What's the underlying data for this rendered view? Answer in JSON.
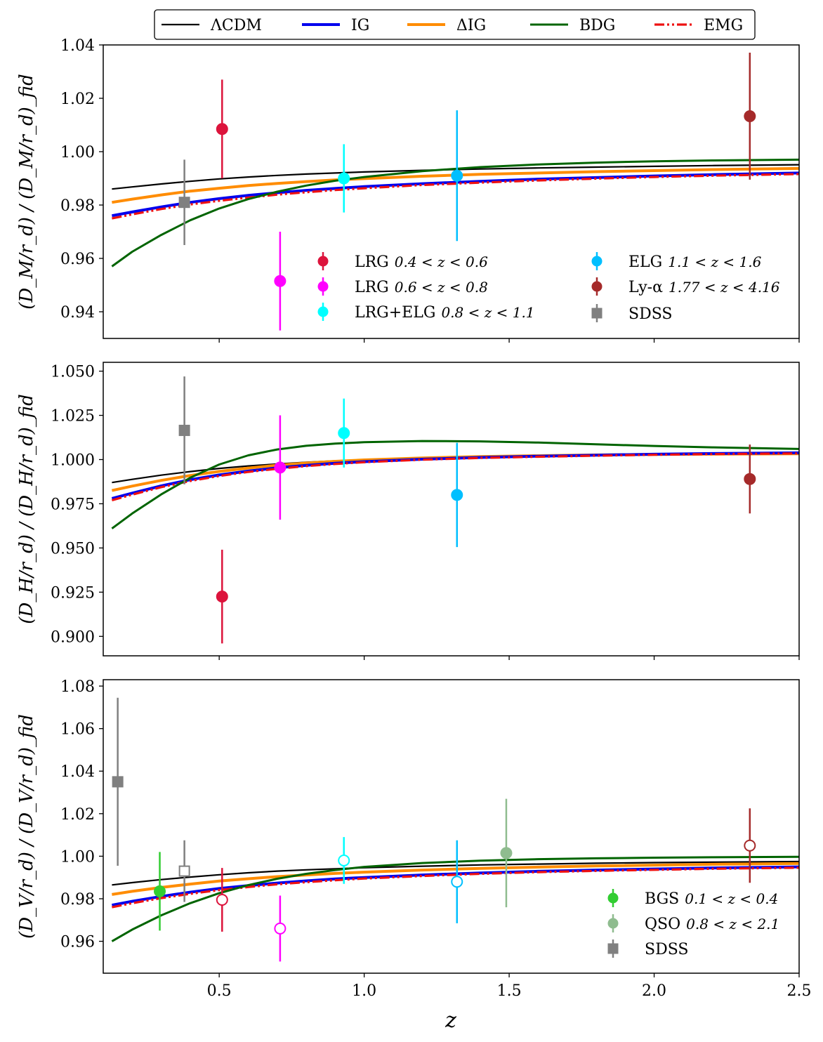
{
  "colors": {
    "LCDM": "#000000",
    "IG": "#0000ee",
    "DIG": "#ff8c00",
    "BDG": "#006400",
    "EMG": "#ee1111",
    "lrg1": "#dc143c",
    "lrg2": "#ff00ff",
    "lrgelg": "#00ffff",
    "elg": "#00bfff",
    "lya": "#a52a2a",
    "sdss": "#808080",
    "bgs": "#32cd32",
    "qso": "#8fbc8f"
  },
  "chart_data": {
    "type": "line",
    "xlabel": "z",
    "xlim": [
      0.1,
      2.5
    ],
    "xticks": [
      "0.5",
      "1.0",
      "1.5",
      "2.0",
      "2.5"
    ],
    "xtick_values": [
      0.5,
      1.0,
      1.5,
      2.0,
      2.5
    ],
    "legend": {
      "position": "top",
      "entries": [
        {
          "key": "LCDM",
          "label": "ΛCDM"
        },
        {
          "key": "IG",
          "label": "IG"
        },
        {
          "key": "DIG",
          "label": "ΔIG"
        },
        {
          "key": "BDG",
          "label": "BDG"
        },
        {
          "key": "EMG",
          "label": "EMG"
        }
      ]
    },
    "model_z": [
      0.13,
      0.2,
      0.3,
      0.4,
      0.5,
      0.6,
      0.7,
      0.8,
      0.9,
      1.0,
      1.2,
      1.4,
      1.6,
      1.8,
      2.0,
      2.2,
      2.5
    ],
    "panels": [
      {
        "id": "dm",
        "ylabel": "(D_M/r_d) / (D_M/r_d)_fid",
        "ylim": [
          0.93,
          1.04
        ],
        "yticks": [
          "0.94",
          "0.96",
          "0.98",
          "1.00",
          "1.02",
          "1.04"
        ],
        "ytick_values": [
          0.94,
          0.96,
          0.98,
          1.0,
          1.02,
          1.04
        ],
        "series": [
          {
            "name": "LCDM",
            "values": [
              0.986,
              0.9868,
              0.9879,
              0.9889,
              0.9898,
              0.9905,
              0.9911,
              0.9916,
              0.992,
              0.9924,
              0.993,
              0.9935,
              0.9939,
              0.9942,
              0.9945,
              0.9948,
              0.9951
            ]
          },
          {
            "name": "DIG",
            "values": [
              0.981,
              0.9822,
              0.9838,
              0.9852,
              0.9863,
              0.9873,
              0.9881,
              0.9888,
              0.9894,
              0.9899,
              0.9908,
              0.9915,
              0.992,
              0.9925,
              0.9929,
              0.9933,
              0.9937
            ]
          },
          {
            "name": "IG",
            "values": [
              0.976,
              0.9774,
              0.9793,
              0.981,
              0.9824,
              0.9836,
              0.9846,
              0.9855,
              0.9862,
              0.9869,
              0.988,
              0.9889,
              0.9897,
              0.9903,
              0.9909,
              0.9914,
              0.992
            ]
          },
          {
            "name": "EMG",
            "values": [
              0.975,
              0.9765,
              0.9785,
              0.9802,
              0.9816,
              0.9828,
              0.9839,
              0.9848,
              0.9856,
              0.9863,
              0.9875,
              0.9884,
              0.9892,
              0.9899,
              0.9905,
              0.991,
              0.9916
            ]
          },
          {
            "name": "BDG",
            "values": [
              0.957,
              0.9625,
              0.9688,
              0.9743,
              0.9787,
              0.9822,
              0.985,
              0.9873,
              0.9891,
              0.9905,
              0.9927,
              0.9942,
              0.9952,
              0.9959,
              0.9964,
              0.9967,
              0.997
            ]
          }
        ],
        "points": [
          {
            "key": "sdss",
            "marker": "square",
            "filled": true,
            "z": 0.38,
            "y": 0.981,
            "err": 0.016
          },
          {
            "key": "lrg1",
            "marker": "circle",
            "filled": true,
            "z": 0.51,
            "y": 1.0085,
            "err": 0.0185
          },
          {
            "key": "lrg2",
            "marker": "circle",
            "filled": true,
            "z": 0.71,
            "y": 0.9515,
            "err": 0.0185
          },
          {
            "key": "lrgelg",
            "marker": "circle",
            "filled": true,
            "z": 0.93,
            "y": 0.99,
            "err": 0.0128
          },
          {
            "key": "elg",
            "marker": "circle",
            "filled": true,
            "z": 1.32,
            "y": 0.991,
            "err": 0.0245
          },
          {
            "key": "lya",
            "marker": "circle",
            "filled": true,
            "z": 2.33,
            "y": 1.0133,
            "err": 0.0238
          }
        ],
        "legend": [
          {
            "key": "lrg1",
            "marker": "circle",
            "label": "LRG",
            "range": "0.4 < z < 0.6"
          },
          {
            "key": "lrg2",
            "marker": "circle",
            "label": "LRG",
            "range": "0.6 < z < 0.8"
          },
          {
            "key": "lrgelg",
            "marker": "circle",
            "label": "LRG+ELG",
            "range": "0.8 < z < 1.1"
          },
          {
            "key": "elg",
            "marker": "circle",
            "label": "ELG",
            "range": "1.1 < z < 1.6"
          },
          {
            "key": "lya",
            "marker": "circle",
            "label": "Ly-α",
            "range": "1.77 < z < 4.16"
          },
          {
            "key": "sdss",
            "marker": "square",
            "label": "SDSS",
            "range": ""
          }
        ]
      },
      {
        "id": "dh",
        "ylabel": "(D_H/r_d) / (D_H/r_d)_fid",
        "ylim": [
          0.889,
          1.055
        ],
        "yticks": [
          "0.900",
          "0.925",
          "0.950",
          "0.975",
          "1.000",
          "1.025",
          "1.050"
        ],
        "ytick_values": [
          0.9,
          0.925,
          0.95,
          0.975,
          1.0,
          1.025,
          1.05
        ],
        "series": [
          {
            "name": "LCDM",
            "values": [
              0.987,
              0.9888,
              0.9912,
              0.9932,
              0.995,
              0.9964,
              0.9975,
              0.9985,
              0.9993,
              0.9999,
              1.0008,
              1.0015,
              1.002,
              1.0024,
              1.0027,
              1.003,
              1.0033
            ]
          },
          {
            "name": "DIG",
            "values": [
              0.9825,
              0.985,
              0.9882,
              0.991,
              0.9933,
              0.9952,
              0.9968,
              0.998,
              0.999,
              0.9998,
              1.0009,
              1.0017,
              1.0022,
              1.0026,
              1.0029,
              1.0031,
              1.0033
            ]
          },
          {
            "name": "IG",
            "values": [
              0.978,
              0.981,
              0.9851,
              0.9886,
              0.9913,
              0.9935,
              0.9953,
              0.9967,
              0.9979,
              0.9988,
              1.0002,
              1.0012,
              1.0019,
              1.0025,
              1.003,
              1.0034,
              1.0038
            ]
          },
          {
            "name": "EMG",
            "values": [
              0.977,
              0.9802,
              0.9844,
              0.9879,
              0.9907,
              0.993,
              0.9948,
              0.9963,
              0.9975,
              0.9985,
              0.9999,
              1.0009,
              1.0016,
              1.0022,
              1.0027,
              1.0031,
              1.0035
            ]
          },
          {
            "name": "BDG",
            "values": [
              0.961,
              0.9695,
              0.9803,
              0.9897,
              0.9972,
              1.0024,
              1.0057,
              1.0078,
              1.009,
              1.0098,
              1.0105,
              1.0103,
              1.0096,
              1.0086,
              1.0077,
              1.0069,
              1.006
            ]
          }
        ],
        "points": [
          {
            "key": "sdss",
            "marker": "square",
            "filled": true,
            "z": 0.38,
            "y": 1.0165,
            "err": 0.0305
          },
          {
            "key": "lrg1",
            "marker": "circle",
            "filled": true,
            "z": 0.51,
            "y": 0.9225,
            "err": 0.0265
          },
          {
            "key": "lrg2",
            "marker": "circle",
            "filled": true,
            "z": 0.71,
            "y": 0.9955,
            "err": 0.0295
          },
          {
            "key": "lrgelg",
            "marker": "circle",
            "filled": true,
            "z": 0.93,
            "y": 1.015,
            "err": 0.0195
          },
          {
            "key": "elg",
            "marker": "circle",
            "filled": true,
            "z": 1.32,
            "y": 0.98,
            "err": 0.0295
          },
          {
            "key": "lya",
            "marker": "circle",
            "filled": true,
            "z": 2.33,
            "y": 0.989,
            "err": 0.0195
          }
        ],
        "legend": []
      },
      {
        "id": "dv",
        "ylabel": "(D_V/r_d) / (D_V/r_d)_fid",
        "ylim": [
          0.945,
          1.083
        ],
        "yticks": [
          "0.96",
          "0.98",
          "1.00",
          "1.02",
          "1.04",
          "1.06",
          "1.08"
        ],
        "ytick_values": [
          0.96,
          0.98,
          1.0,
          1.02,
          1.04,
          1.06,
          1.08
        ],
        "series": [
          {
            "name": "LCDM",
            "values": [
              0.9865,
              0.9876,
              0.989,
              0.9902,
              0.9913,
              0.9922,
              0.993,
              0.9936,
              0.9941,
              0.9946,
              0.9953,
              0.9959,
              0.9963,
              0.9967,
              0.997,
              0.9972,
              0.9975
            ]
          },
          {
            "name": "DIG",
            "values": [
              0.982,
              0.9835,
              0.9853,
              0.9869,
              0.9883,
              0.9894,
              0.9904,
              0.9912,
              0.9919,
              0.9925,
              0.9935,
              0.9943,
              0.9949,
              0.9954,
              0.9958,
              0.9962,
              0.9966
            ]
          },
          {
            "name": "IG",
            "values": [
              0.977,
              0.9788,
              0.9811,
              0.9831,
              0.9848,
              0.9862,
              0.9874,
              0.9884,
              0.9893,
              0.99,
              0.9912,
              0.9921,
              0.9929,
              0.9935,
              0.994,
              0.9945,
              0.995
            ]
          },
          {
            "name": "EMG",
            "values": [
              0.976,
              0.9779,
              0.9803,
              0.9823,
              0.9841,
              0.9855,
              0.9868,
              0.9878,
              0.9887,
              0.9895,
              0.9907,
              0.9917,
              0.9925,
              0.9931,
              0.9936,
              0.9941,
              0.9946
            ]
          },
          {
            "name": "BDG",
            "values": [
              0.96,
              0.9655,
              0.9722,
              0.9779,
              0.9826,
              0.9864,
              0.9894,
              0.9917,
              0.9935,
              0.995,
              0.9968,
              0.9979,
              0.9986,
              0.999,
              0.9993,
              0.9995,
              0.9997
            ]
          }
        ],
        "points": [
          {
            "key": "sdss",
            "marker": "square",
            "filled": true,
            "z": 0.15,
            "y": 1.035,
            "err": 0.0395
          },
          {
            "key": "bgs",
            "marker": "circle",
            "filled": true,
            "z": 0.295,
            "y": 0.9835,
            "err": 0.0185
          },
          {
            "key": "sdss",
            "marker": "square",
            "filled": false,
            "z": 0.38,
            "y": 0.993,
            "err": 0.0145
          },
          {
            "key": "lrg1",
            "marker": "circle",
            "filled": false,
            "z": 0.51,
            "y": 0.9795,
            "err": 0.015
          },
          {
            "key": "lrg2",
            "marker": "circle",
            "filled": false,
            "z": 0.71,
            "y": 0.966,
            "err": 0.0155
          },
          {
            "key": "lrgelg",
            "marker": "circle",
            "filled": false,
            "z": 0.93,
            "y": 0.998,
            "err": 0.011
          },
          {
            "key": "elg",
            "marker": "circle",
            "filled": false,
            "z": 1.32,
            "y": 0.988,
            "err": 0.0195
          },
          {
            "key": "qso",
            "marker": "circle",
            "filled": true,
            "z": 1.49,
            "y": 1.0015,
            "err": 0.0255
          },
          {
            "key": "lya",
            "marker": "circle",
            "filled": false,
            "z": 2.33,
            "y": 1.005,
            "err": 0.0175
          }
        ],
        "legend": [
          {
            "key": "bgs",
            "marker": "circle",
            "label": "BGS",
            "range": "0.1 < z < 0.4"
          },
          {
            "key": "qso",
            "marker": "circle",
            "label": "QSO",
            "range": "0.8 < z < 2.1"
          },
          {
            "key": "sdss",
            "marker": "square",
            "label": "SDSS",
            "range": ""
          }
        ]
      }
    ]
  }
}
